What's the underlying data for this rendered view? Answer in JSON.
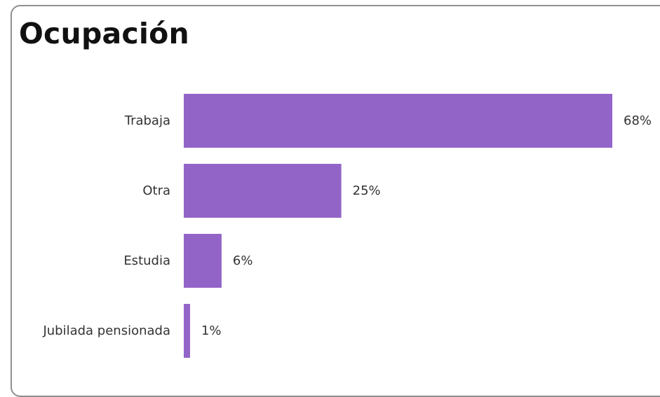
{
  "chart_data": {
    "type": "bar",
    "orientation": "horizontal",
    "title": "Ocupación",
    "categories": [
      "Trabaja",
      "Otra",
      "Estudia",
      "Jubilada pensionada"
    ],
    "values": [
      68,
      25,
      6,
      1
    ],
    "value_labels": [
      "68%",
      "25%",
      "6%",
      "1%"
    ],
    "unit": "%",
    "xlim": [
      0,
      68
    ],
    "grid": false,
    "legend": "none",
    "bar_color": "#9364c8"
  }
}
